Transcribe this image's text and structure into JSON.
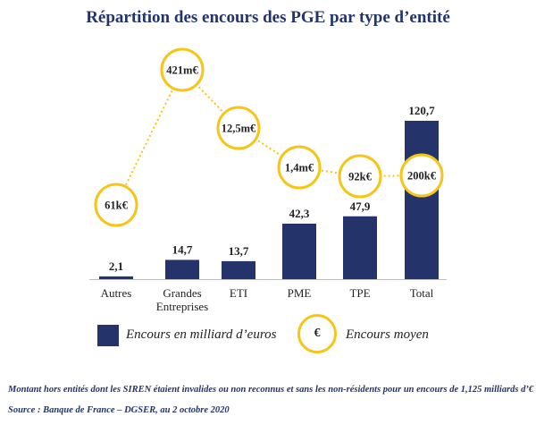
{
  "chart_data": {
    "type": "bar",
    "title": "Répartition des encours des PGE par type d’entité",
    "categories": [
      "Autres",
      "Grandes Entreprises",
      "ETI",
      "PME",
      "TPE",
      "Total"
    ],
    "category_lines": [
      [
        "Autres"
      ],
      [
        "Grandes",
        "Entreprises"
      ],
      [
        "ETI"
      ],
      [
        "PME"
      ],
      [
        "TPE"
      ],
      [
        "Total"
      ]
    ],
    "series": [
      {
        "name": "Encours en milliard d’euros",
        "values": [
          2.1,
          14.7,
          13.7,
          42.3,
          47.9,
          120.7
        ],
        "value_labels": [
          "2,1",
          "14,7",
          "13,7",
          "42,3",
          "47,9",
          "120,7"
        ]
      },
      {
        "name": "Encours moyen",
        "labels": [
          "61k€",
          "421m€",
          "12,5m€",
          "1,4m€",
          "92k€",
          "200k€"
        ],
        "values_keur": [
          61,
          421000,
          12500,
          1400,
          92,
          200
        ]
      }
    ],
    "legend_symbol": "€",
    "footnote": "Montant hors entités dont les SIREN étaient invalides ou non reconnus et sans les non-résidents pour un encours de 1,125 milliards d’€",
    "source": "Source : Banque de France – DGSER, au 2 octobre 2020",
    "colors": {
      "bar": "#24346b",
      "circle_border": "#f5c518",
      "dotted_line": "#f5c518",
      "title": "#24346b"
    }
  }
}
